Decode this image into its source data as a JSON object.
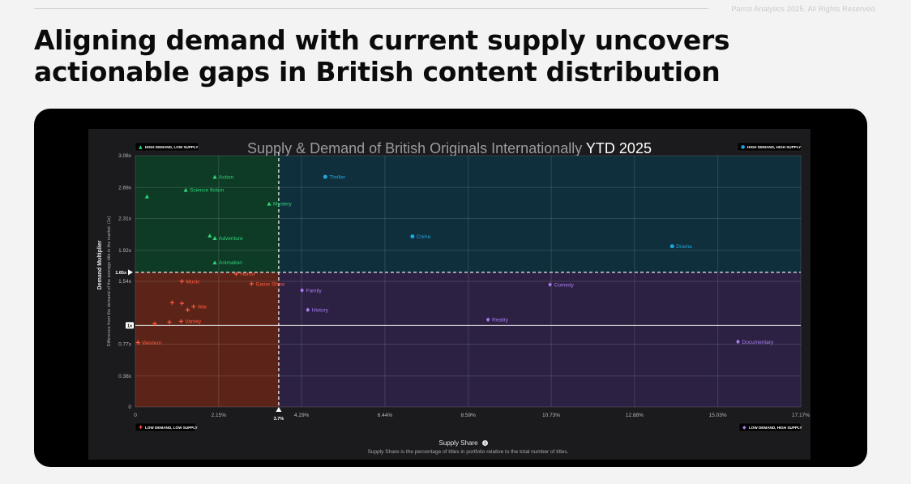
{
  "page": {
    "copyright": "Parrot Analytics 2025. All Rights Reserved.",
    "headline_line1": "Aligning demand with current supply uncovers",
    "headline_line2": "actionable gaps in British content distribution"
  },
  "colors": {
    "high_demand_low_supply": "#0e3b25",
    "high_demand_high_supply": "#0f2f3d",
    "low_demand_low_supply": "#5c2419",
    "low_demand_high_supply": "#2c2142",
    "green": "#2ed47a",
    "blue": "#1fa6de",
    "red": "#ff5a3d",
    "purple": "#a77df0"
  },
  "chart_data": {
    "type": "scatter",
    "title": "Supply & Demand of British Originals Internationally",
    "title_highlight": "YTD 2025",
    "xlabel": "Supply Share",
    "xlabel_note": "Supply Share is the percentage of titles in portfolio relative to the total number of titles.",
    "ylabel": "Demand Multiplier",
    "ylabel_sub": "Difference from the demand of the average title in the market. (1x)",
    "xlim": [
      0,
      17.17
    ],
    "ylim": [
      0,
      3.08
    ],
    "x_ticks": [
      {
        "v": 0,
        "label": "0"
      },
      {
        "v": 2.15,
        "label": "2.15%"
      },
      {
        "v": 4.29,
        "label": "4.29%"
      },
      {
        "v": 6.44,
        "label": "6.44%"
      },
      {
        "v": 8.59,
        "label": "8.59%"
      },
      {
        "v": 10.73,
        "label": "10.73%"
      },
      {
        "v": 12.88,
        "label": "12.88%"
      },
      {
        "v": 15.03,
        "label": "15.03%"
      },
      {
        "v": 17.17,
        "label": "17.17%"
      }
    ],
    "y_ticks": [
      {
        "v": 0,
        "label": "0"
      },
      {
        "v": 0.38,
        "label": "0.38x"
      },
      {
        "v": 0.77,
        "label": "0.77x"
      },
      {
        "v": 1.54,
        "label": "1.54x"
      },
      {
        "v": 1.92,
        "label": "1.92x"
      },
      {
        "v": 2.31,
        "label": "2.31x"
      },
      {
        "v": 2.69,
        "label": "2.69x"
      },
      {
        "v": 3.08,
        "label": "3.08x"
      }
    ],
    "avg_demand": {
      "v": 1.0,
      "label": "1x"
    },
    "threshold_x": {
      "v": 3.7,
      "label": "3.7%"
    },
    "threshold_y": {
      "v": 1.65,
      "label": "1.65x"
    },
    "quadrants": {
      "tl": "HIGH DEMAND, LOW SUPPLY",
      "tr": "HIGH DEMAND, HIGH SUPPLY",
      "bl": "LOW DEMAND, LOW SUPPLY",
      "br": "LOW DEMAND, HIGH SUPPLY"
    },
    "points": [
      {
        "label": "Action",
        "x": 2.05,
        "y": 2.82,
        "group": "tl"
      },
      {
        "label": "Science fiction",
        "x": 1.3,
        "y": 2.66,
        "group": "tl"
      },
      {
        "label": "",
        "x": 0.3,
        "y": 2.58,
        "group": "tl"
      },
      {
        "label": "Mystery",
        "x": 3.45,
        "y": 2.49,
        "group": "tl"
      },
      {
        "label": "Adventure",
        "x": 2.05,
        "y": 2.07,
        "group": "tl"
      },
      {
        "label": "",
        "x": 1.92,
        "y": 2.1,
        "group": "tl"
      },
      {
        "label": "Animation",
        "x": 2.05,
        "y": 1.77,
        "group": "tl"
      },
      {
        "label": "Thriller",
        "x": 4.9,
        "y": 2.82,
        "group": "tr"
      },
      {
        "label": "Crime",
        "x": 7.15,
        "y": 2.09,
        "group": "tr"
      },
      {
        "label": "Drama",
        "x": 13.85,
        "y": 1.97,
        "group": "tr"
      },
      {
        "label": "Horror",
        "x": 2.6,
        "y": 1.63,
        "group": "bl"
      },
      {
        "label": "Music",
        "x": 1.2,
        "y": 1.54,
        "group": "bl"
      },
      {
        "label": "Game Show",
        "x": 3.0,
        "y": 1.51,
        "group": "bl"
      },
      {
        "label": "War",
        "x": 1.5,
        "y": 1.23,
        "group": "bl"
      },
      {
        "label": "",
        "x": 0.95,
        "y": 1.28,
        "group": "bl"
      },
      {
        "label": "",
        "x": 1.2,
        "y": 1.27,
        "group": "bl"
      },
      {
        "label": "",
        "x": 1.35,
        "y": 1.19,
        "group": "bl"
      },
      {
        "label": "Variety",
        "x": 1.18,
        "y": 1.05,
        "group": "bl"
      },
      {
        "label": "",
        "x": 0.88,
        "y": 1.04,
        "group": "bl"
      },
      {
        "label": "",
        "x": 0.5,
        "y": 1.02,
        "group": "bl"
      },
      {
        "label": "Western",
        "x": 0.07,
        "y": 0.79,
        "group": "bl"
      },
      {
        "label": "Family",
        "x": 4.3,
        "y": 1.43,
        "group": "br"
      },
      {
        "label": "History",
        "x": 4.45,
        "y": 1.19,
        "group": "br"
      },
      {
        "label": "Comedy",
        "x": 10.7,
        "y": 1.5,
        "group": "br"
      },
      {
        "label": "Reality",
        "x": 9.1,
        "y": 1.07,
        "group": "br"
      },
      {
        "label": "Documentary",
        "x": 15.55,
        "y": 0.8,
        "group": "br"
      }
    ]
  }
}
